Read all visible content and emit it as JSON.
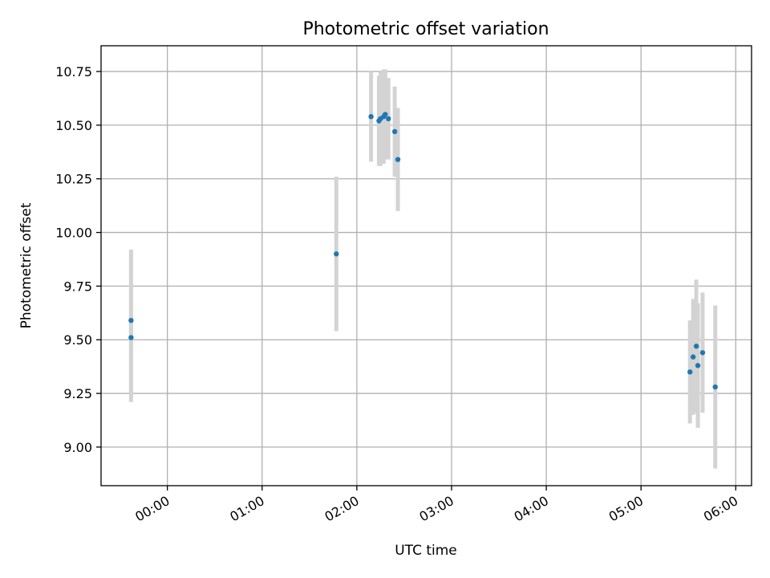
{
  "chart_data": {
    "type": "scatter",
    "title": "Photometric offset variation",
    "xlabel": "UTC time",
    "ylabel": "Photometric offset",
    "xlim": [
      "-00:42",
      "06:10"
    ],
    "ylim": [
      8.82,
      10.87
    ],
    "grid": true,
    "x_ticks": [
      "00:00",
      "01:00",
      "02:00",
      "03:00",
      "04:00",
      "05:00",
      "06:00"
    ],
    "y_ticks": [
      "9.00",
      "9.25",
      "9.50",
      "9.75",
      "10.00",
      "10.25",
      "10.50",
      "10.75"
    ],
    "series": [
      {
        "error_color": "#d3d3d3",
        "point_color": "#1f77b4",
        "points": [
          {
            "x": "-00:23",
            "y": 9.59,
            "yerr": 0.33
          },
          {
            "x": "-00:23",
            "y": 9.51,
            "yerr": 0.3
          },
          {
            "x": "01:47",
            "y": 9.9,
            "yerr": 0.36
          },
          {
            "x": "02:09",
            "y": 10.54,
            "yerr": 0.21
          },
          {
            "x": "02:14",
            "y": 10.52,
            "yerr": 0.21
          },
          {
            "x": "02:15",
            "y": 10.53,
            "yerr": 0.22
          },
          {
            "x": "02:17",
            "y": 10.54,
            "yerr": 0.22
          },
          {
            "x": "02:18",
            "y": 10.55,
            "yerr": 0.21
          },
          {
            "x": "02:20",
            "y": 10.53,
            "yerr": 0.19
          },
          {
            "x": "02:24",
            "y": 10.47,
            "yerr": 0.21
          },
          {
            "x": "02:26",
            "y": 10.34,
            "yerr": 0.24
          },
          {
            "x": "05:31",
            "y": 9.35,
            "yerr": 0.24
          },
          {
            "x": "05:33",
            "y": 9.42,
            "yerr": 0.27
          },
          {
            "x": "05:35",
            "y": 9.47,
            "yerr": 0.31
          },
          {
            "x": "05:36",
            "y": 9.38,
            "yerr": 0.29
          },
          {
            "x": "05:39",
            "y": 9.44,
            "yerr": 0.28
          },
          {
            "x": "05:47",
            "y": 9.28,
            "yerr": 0.38
          }
        ]
      }
    ]
  }
}
